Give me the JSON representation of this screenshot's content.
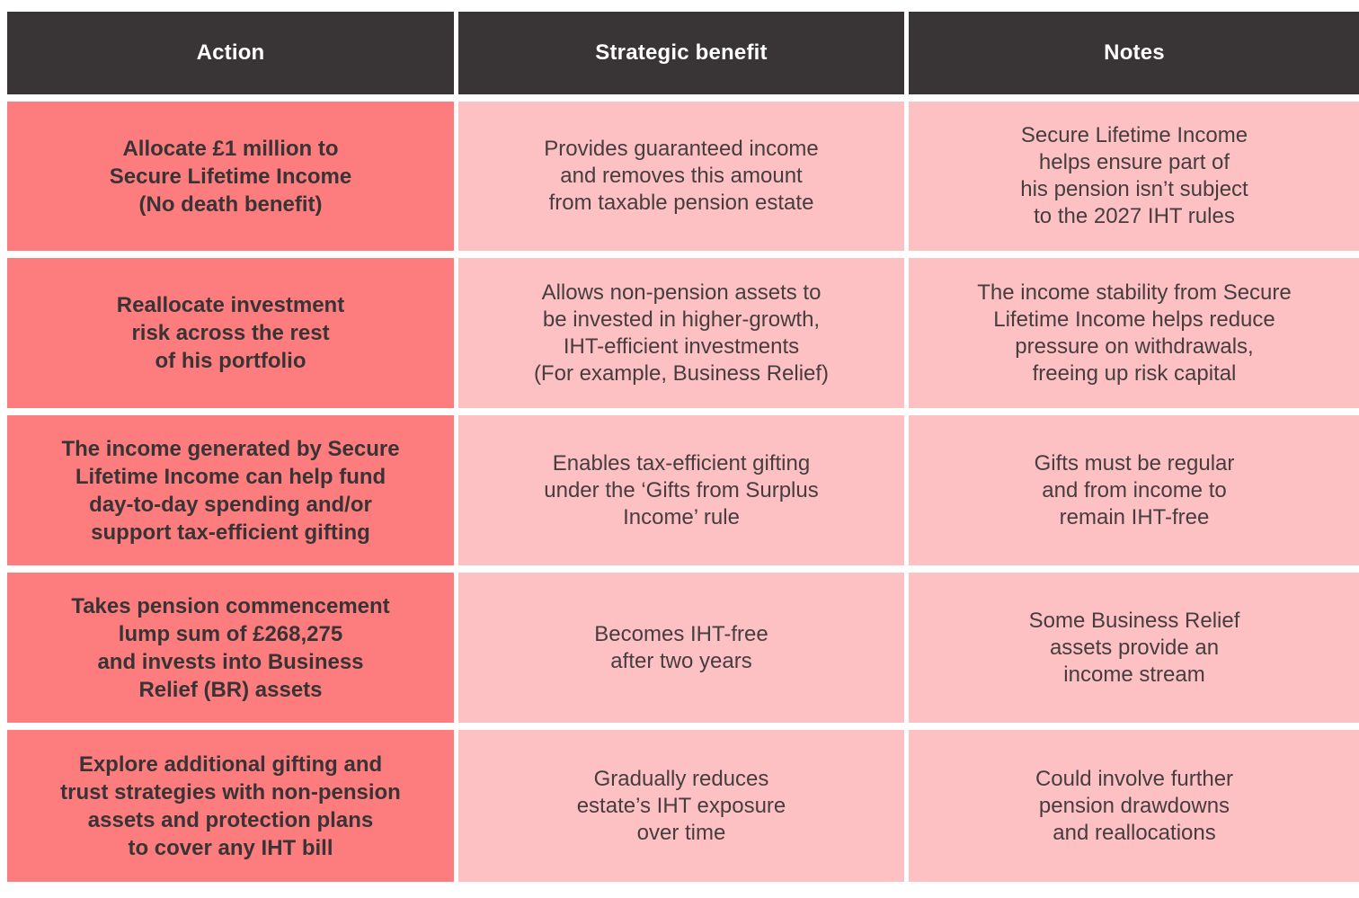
{
  "table": {
    "headers": {
      "action": "Action",
      "benefit": "Strategic benefit",
      "notes": "Notes"
    },
    "rows": [
      {
        "action": "Allocate £1 million to\nSecure Lifetime Income\n(No death benefit)",
        "benefit": "Provides guaranteed income\nand removes this amount\nfrom taxable pension estate",
        "notes": "Secure Lifetime Income\nhelps ensure part of\nhis pension isn’t subject\nto the 2027 IHT rules"
      },
      {
        "action": "Reallocate investment\nrisk across the rest\nof his portfolio",
        "benefit": "Allows non-pension assets to\nbe invested in higher-growth,\nIHT-efficient investments\n(For example, Business Relief)",
        "notes": "The income stability from Secure\nLifetime Income helps reduce\npressure on withdrawals,\nfreeing up risk capital"
      },
      {
        "action": "The income generated by Secure\nLifetime Income can help fund\nday-to-day spending and/or\nsupport tax-efficient gifting",
        "benefit": "Enables tax-efficient gifting\nunder the ‘Gifts from Surplus\nIncome’ rule",
        "notes": "Gifts must be regular\nand from income to\nremain IHT-free"
      },
      {
        "action": "Takes pension commencement\nlump sum of £268,275\nand invests into Business\nRelief (BR) assets",
        "benefit": "Becomes IHT-free\nafter two years",
        "notes": "Some Business Relief\nassets provide an\nincome stream"
      },
      {
        "action": "Explore additional gifting and\ntrust strategies with non-pension\nassets and protection plans\nto cover any IHT bill",
        "benefit": "Gradually reduces\nestate’s IHT exposure\nover time",
        "notes": "Could involve further\npension drawdowns\nand reallocations"
      }
    ]
  },
  "colors": {
    "header_bg": "#393435",
    "header_text": "#ffffff",
    "action_bg": "#fd7d7e",
    "action_text": "#3a3335",
    "body_bg": "#fec1c3",
    "body_text": "#463d3f",
    "gutter": "#ffffff"
  }
}
